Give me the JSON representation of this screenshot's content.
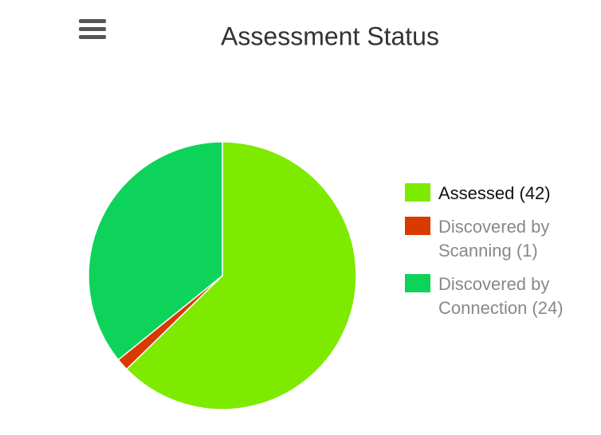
{
  "chart_data": {
    "type": "pie",
    "title": "Assessment Status",
    "categories": [
      "Assessed (42)",
      "Discovered by Scanning (1)",
      "Discovered by Connection (24)"
    ],
    "values": [
      42,
      1,
      24
    ],
    "colors": [
      "#7eea00",
      "#d93a00",
      "#0dd35a"
    ],
    "legend": "right"
  }
}
